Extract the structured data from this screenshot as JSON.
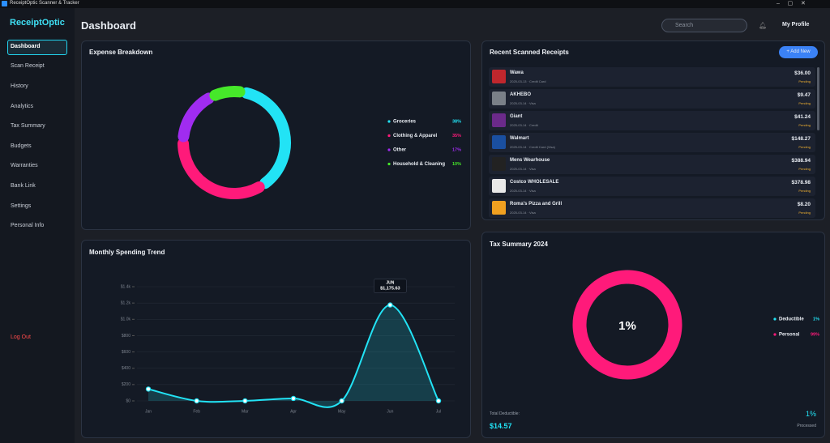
{
  "window": {
    "title": "ReceiptOptic Scanner & Tracker"
  },
  "sidebar": {
    "brand": "ReceiptOptic",
    "nav": [
      "Dashboard",
      "Scan Receipt",
      "History",
      "Analytics",
      "Tax Summary",
      "Budgets",
      "Warranties",
      "Bank Link",
      "Settings",
      "Personal Info"
    ],
    "logout": "Log Out"
  },
  "header": {
    "title": "Dashboard",
    "search_placeholder": "Search",
    "profile": "My Profile"
  },
  "expense_breakdown": {
    "type": "pie",
    "title": "Expense Breakdown",
    "categories": [
      "Groceries",
      "Clothing & Apparel",
      "Other",
      "Household & Cleaning"
    ],
    "values": [
      38,
      35,
      17,
      10
    ],
    "value_labels": [
      "38%",
      "35%",
      "17%",
      "10%"
    ],
    "colors": [
      "#22e3f5",
      "#ff1a7a",
      "#a02cf0",
      "#46e82a"
    ]
  },
  "recent_receipts": {
    "title": "Recent Scanned Receipts",
    "button": "+ Add New",
    "rows": [
      {
        "store": "Wawa",
        "details": "2025-03-13 · Credit Card",
        "amount": "$36.00",
        "status": "Pending",
        "logo": "#c0272d"
      },
      {
        "store": "AKHEBO",
        "details": "2025-03-14 · Visa",
        "amount": "$9.47",
        "status": "Pending",
        "logo": "#7a8088"
      },
      {
        "store": "Giant",
        "details": "2025-03-14 · Credit",
        "amount": "$41.24",
        "status": "Pending",
        "logo": "#6b2a8a"
      },
      {
        "store": "Walmart",
        "details": "2025-03-14 · Credit Card (Visa)",
        "amount": "$148.27",
        "status": "Pending",
        "logo": "#1a4fa0"
      },
      {
        "store": "Mens Wearhouse",
        "details": "2025-03-14 · Visa",
        "amount": "$388.94",
        "status": "Pending",
        "logo": "#222222"
      },
      {
        "store": "Costco WHOLESALE",
        "details": "2025-03-14 · Visa",
        "amount": "$378.98",
        "status": "Pending",
        "logo": "#e8e8e8"
      },
      {
        "store": "Roma's Pizza and Grill",
        "details": "2025-03-14 · Visa",
        "amount": "$8.20",
        "status": "Pending",
        "logo": "#f0a020"
      }
    ]
  },
  "monthly_trend": {
    "type": "line",
    "title": "Monthly Spending Trend",
    "categories": [
      "Jan",
      "Feb",
      "Mar",
      "Apr",
      "May",
      "Jun",
      "Jul"
    ],
    "values": [
      145,
      0,
      0,
      30,
      0,
      1175.63,
      0
    ],
    "value_labels": [
      null,
      null,
      null,
      null,
      null,
      "$1,175.63",
      null
    ],
    "tooltip_category": "JUN",
    "color": "#22e3f5",
    "ylim": [
      0,
      1400
    ],
    "yticks": [
      {
        "value": 0,
        "label": "$0"
      },
      {
        "value": 200,
        "label": "$200"
      },
      {
        "value": 400,
        "label": "$400"
      },
      {
        "value": 600,
        "label": "$600"
      },
      {
        "value": 800,
        "label": "$800"
      },
      {
        "value": 1000,
        "label": "$1.0k"
      },
      {
        "value": 1200,
        "label": "$1.2k"
      },
      {
        "value": 1400,
        "label": "$1.4k"
      }
    ],
    "grid": true
  },
  "tax_summary": {
    "type": "pie",
    "title": "Tax Summary 2024",
    "center_label": "1%",
    "categories": [
      "Deductible",
      "Personal"
    ],
    "values": [
      1,
      99
    ],
    "value_labels": [
      "1%",
      "99%"
    ],
    "colors": [
      "#22e3f5",
      "#ff1a7a"
    ],
    "total_label": "Total Deductible:",
    "total_value": "$14.57",
    "processed_value": "1%",
    "processed_label": "Processed"
  }
}
